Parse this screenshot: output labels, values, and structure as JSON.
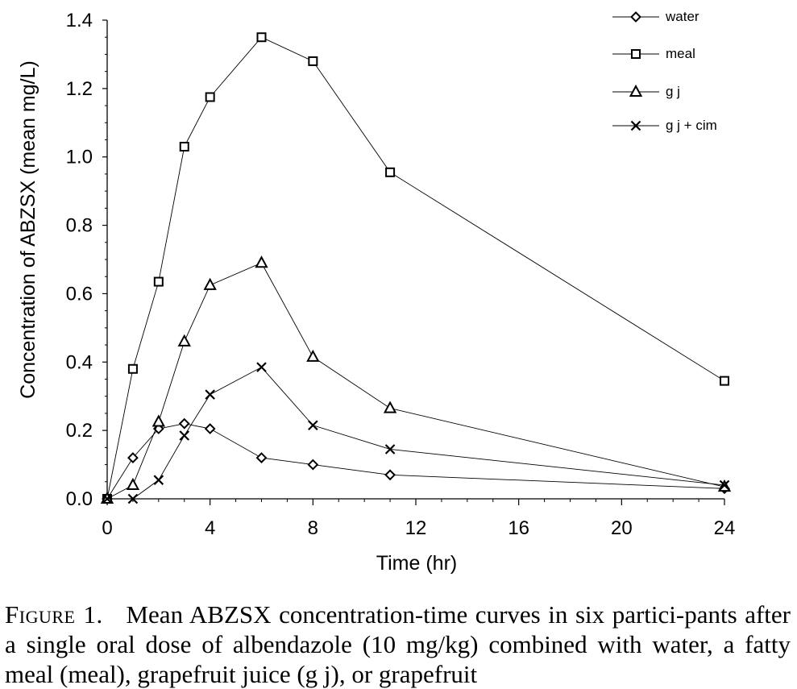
{
  "chart_data": {
    "type": "line",
    "title": "",
    "xlabel": "Time (hr)",
    "ylabel": "Concentration of ABZSX (mean mg/L)",
    "xlim": [
      0,
      24
    ],
    "ylim": [
      0,
      1.4
    ],
    "xticks": [
      0,
      4,
      8,
      12,
      16,
      20,
      24
    ],
    "xtick_labels": [
      "0",
      "4",
      "8",
      "12",
      "16",
      "20",
      "24"
    ],
    "yticks": [
      0,
      0.2,
      0.4,
      0.6,
      0.8,
      1.0,
      1.2,
      1.4
    ],
    "ytick_labels": [
      "0.0",
      "0.2",
      "0.4",
      "0.6",
      "0.8",
      "1.0",
      "1.2",
      "1.4"
    ],
    "grid": false,
    "legend_position": "top-right",
    "series": [
      {
        "name": "water",
        "marker": "diamond",
        "x": [
          0,
          1,
          2,
          3,
          4,
          6,
          8,
          11,
          24
        ],
        "y": [
          0.0,
          0.12,
          0.205,
          0.22,
          0.205,
          0.12,
          0.1,
          0.07,
          0.03
        ]
      },
      {
        "name": "meal",
        "marker": "square",
        "x": [
          0,
          1,
          2,
          3,
          4,
          6,
          8,
          11,
          24
        ],
        "y": [
          0.0,
          0.38,
          0.635,
          1.03,
          1.175,
          1.35,
          1.28,
          0.955,
          0.345
        ]
      },
      {
        "name": "g j",
        "marker": "triangle",
        "x": [
          0,
          1,
          2,
          3,
          4,
          6,
          8,
          11,
          24
        ],
        "y": [
          0.0,
          0.04,
          0.225,
          0.46,
          0.625,
          0.69,
          0.415,
          0.265,
          0.035
        ]
      },
      {
        "name": "g j + cim",
        "marker": "x",
        "x": [
          0,
          1,
          2,
          3,
          4,
          6,
          8,
          11,
          24
        ],
        "y": [
          0.0,
          0.0,
          0.055,
          0.185,
          0.305,
          0.385,
          0.215,
          0.145,
          0.04
        ]
      }
    ]
  },
  "caption": {
    "label": "Figure 1.",
    "text": "Mean ABZSX concentration-time curves in six partici-pants after a single oral dose of albendazole (10 mg/kg) combined with water, a fatty meal (meal), grapefruit juice (g j), or grapefruit"
  }
}
